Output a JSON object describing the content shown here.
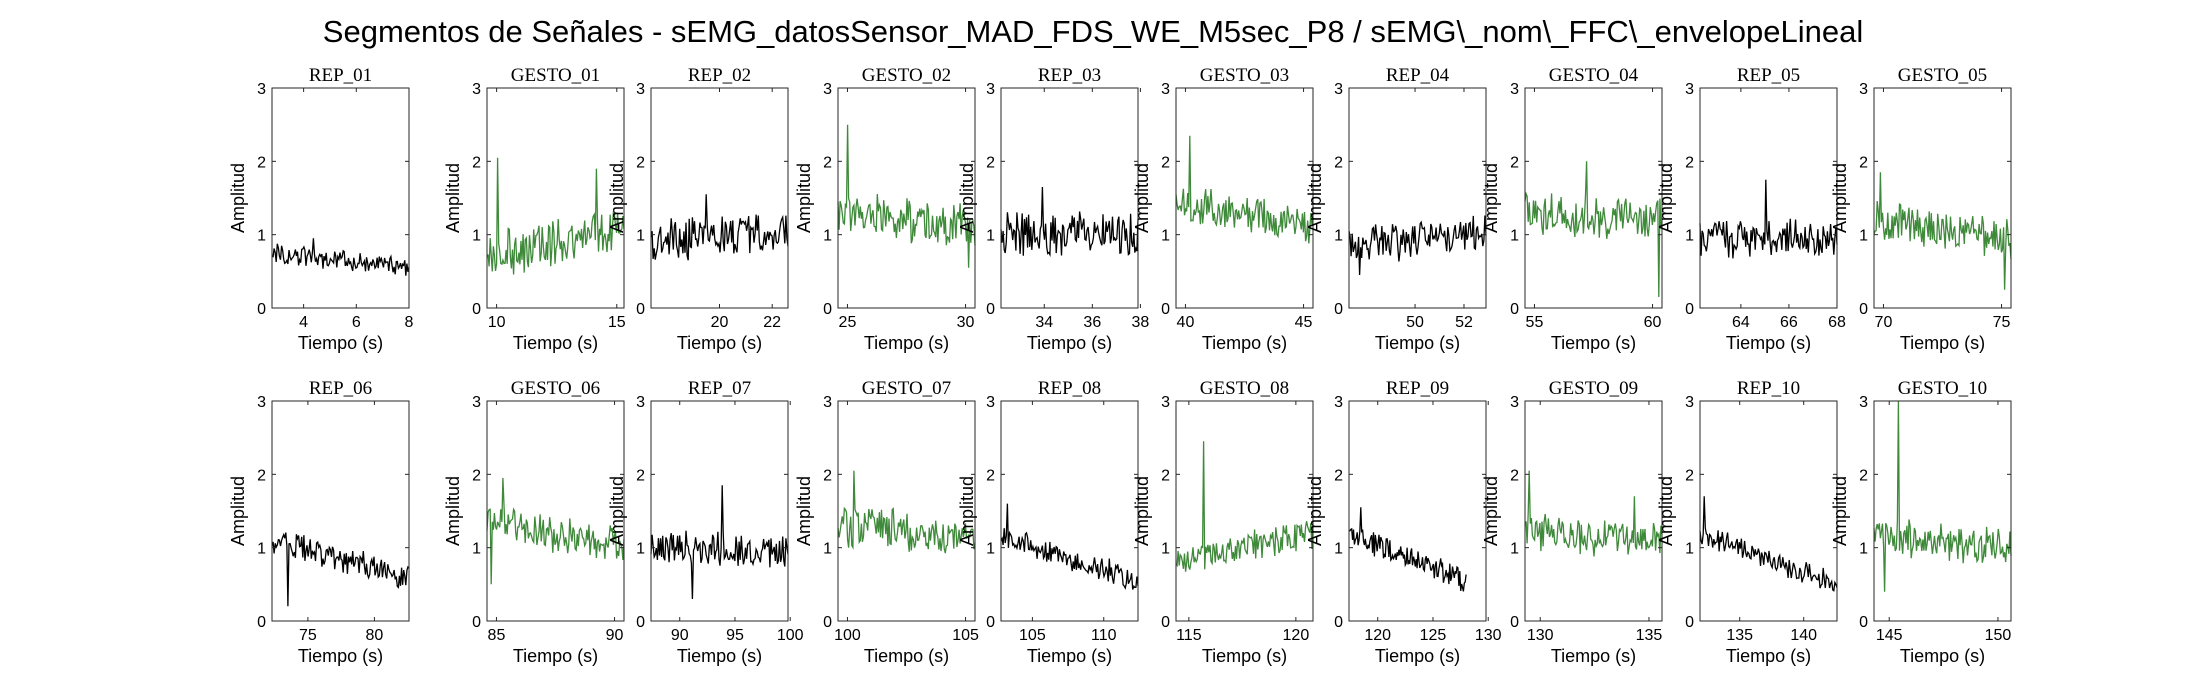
{
  "figure_title": "Segmentos de Señales - sEMG_datosSensor_MAD_FDS_WE_M5sec_P8 / sEMG\\_nom\\_FFC\\_envelopeLineal",
  "colors": {
    "rep": "#000000",
    "gesto": "#3f8a3a",
    "axes": "#262626"
  },
  "chart_data": [
    {
      "type": "line",
      "title": "REP_01",
      "xlabel": "Tiempo (s)",
      "ylabel": "Amplitud",
      "xlim": [
        2.8,
        8
      ],
      "ylim": [
        0,
        3
      ],
      "xticks": [
        4,
        6,
        8
      ],
      "yticks": [
        0,
        1,
        2,
        3
      ],
      "color": "#000000",
      "series": [
        {
          "x": [
            2.8,
            8
          ],
          "y_start": 0.75,
          "y_end": 0.55,
          "noise": 0.12,
          "peaks": [
            {
              "t": 0.3,
              "v": 0.95
            }
          ]
        }
      ]
    },
    {
      "type": "line",
      "title": "GESTO_01",
      "xlabel": "Tiempo (s)",
      "ylabel": "Amplitud",
      "xlim": [
        9.6,
        15.3
      ],
      "ylim": [
        0,
        3
      ],
      "xticks": [
        10,
        15
      ],
      "yticks": [
        0,
        1,
        2,
        3
      ],
      "color": "#3f8a3a",
      "series": [
        {
          "x": [
            9.6,
            15.3
          ],
          "y_start": 0.7,
          "y_end": 1.1,
          "noise": 0.28,
          "peaks": [
            {
              "t": 0.08,
              "v": 2.05
            },
            {
              "t": 0.8,
              "v": 1.9
            }
          ]
        }
      ]
    },
    {
      "type": "line",
      "title": "REP_02",
      "xlabel": "Tiempo (s)",
      "ylabel": "Amplitud",
      "xlim": [
        17.4,
        22.6
      ],
      "ylim": [
        0,
        3
      ],
      "xticks": [
        20,
        22
      ],
      "yticks": [
        0,
        1,
        2,
        3
      ],
      "color": "#000000",
      "series": [
        {
          "x": [
            17.4,
            22.6
          ],
          "y_start": 0.9,
          "y_end": 1.05,
          "noise": 0.25,
          "peaks": [
            {
              "t": 0.4,
              "v": 1.55
            }
          ]
        }
      ]
    },
    {
      "type": "line",
      "title": "GESTO_02",
      "xlabel": "Tiempo (s)",
      "ylabel": "Amplitud",
      "xlim": [
        24.6,
        30.4
      ],
      "ylim": [
        0,
        3
      ],
      "xticks": [
        25,
        30
      ],
      "yticks": [
        0,
        1,
        2,
        3
      ],
      "color": "#3f8a3a",
      "series": [
        {
          "x": [
            24.6,
            30.4
          ],
          "y_start": 1.3,
          "y_end": 1.1,
          "noise": 0.25,
          "peaks": [
            {
              "t": 0.07,
              "v": 2.5
            },
            {
              "t": 0.95,
              "v": 0.55
            }
          ]
        }
      ]
    },
    {
      "type": "line",
      "title": "REP_03",
      "xlabel": "Tiempo (s)",
      "ylabel": "Amplitud",
      "xlim": [
        32.2,
        37.9
      ],
      "ylim": [
        0,
        3
      ],
      "xticks": [
        34,
        36,
        38
      ],
      "yticks": [
        0,
        1,
        2,
        3
      ],
      "color": "#000000",
      "series": [
        {
          "x": [
            32.2,
            37.9
          ],
          "y_start": 1.0,
          "y_end": 1.0,
          "noise": 0.25,
          "peaks": [
            {
              "t": 0.3,
              "v": 1.65
            }
          ]
        }
      ]
    },
    {
      "type": "line",
      "title": "GESTO_03",
      "xlabel": "Tiempo (s)",
      "ylabel": "Amplitud",
      "xlim": [
        39.6,
        45.4
      ],
      "ylim": [
        0,
        3
      ],
      "xticks": [
        40,
        45
      ],
      "yticks": [
        0,
        1,
        2,
        3
      ],
      "color": "#3f8a3a",
      "series": [
        {
          "x": [
            39.6,
            45.4
          ],
          "y_start": 1.4,
          "y_end": 1.1,
          "noise": 0.25,
          "peaks": [
            {
              "t": 0.1,
              "v": 2.35
            }
          ]
        }
      ]
    },
    {
      "type": "line",
      "title": "REP_04",
      "xlabel": "Tiempo (s)",
      "ylabel": "Amplitud",
      "xlim": [
        47.3,
        52.9
      ],
      "ylim": [
        0,
        3
      ],
      "xticks": [
        50,
        52
      ],
      "yticks": [
        0,
        1,
        2,
        3
      ],
      "color": "#000000",
      "series": [
        {
          "x": [
            47.3,
            52.9
          ],
          "y_start": 0.85,
          "y_end": 1.0,
          "noise": 0.22,
          "peaks": [
            {
              "t": 0.08,
              "v": 0.45
            }
          ]
        }
      ]
    },
    {
      "type": "line",
      "title": "GESTO_04",
      "xlabel": "Tiempo (s)",
      "ylabel": "Amplitud",
      "xlim": [
        54.6,
        60.4
      ],
      "ylim": [
        0,
        3
      ],
      "xticks": [
        55,
        60
      ],
      "yticks": [
        0,
        1,
        2,
        3
      ],
      "color": "#3f8a3a",
      "series": [
        {
          "x": [
            54.6,
            60.4
          ],
          "y_start": 1.3,
          "y_end": 1.2,
          "noise": 0.25,
          "peaks": [
            {
              "t": 0.45,
              "v": 2.0
            },
            {
              "t": 0.98,
              "v": 0.15
            }
          ]
        }
      ]
    },
    {
      "type": "line",
      "title": "REP_05",
      "xlabel": "Tiempo (s)",
      "ylabel": "Amplitud",
      "xlim": [
        62.3,
        68
      ],
      "ylim": [
        0,
        3
      ],
      "xticks": [
        64,
        66,
        68
      ],
      "yticks": [
        0,
        1,
        2,
        3
      ],
      "color": "#000000",
      "series": [
        {
          "x": [
            62.3,
            68
          ],
          "y_start": 0.95,
          "y_end": 0.95,
          "noise": 0.22,
          "peaks": [
            {
              "t": 0.48,
              "v": 1.75
            }
          ]
        }
      ]
    },
    {
      "type": "line",
      "title": "GESTO_05",
      "xlabel": "Tiempo (s)",
      "ylabel": "Amplitud",
      "xlim": [
        69.6,
        75.4
      ],
      "ylim": [
        0,
        3
      ],
      "xticks": [
        70,
        75
      ],
      "yticks": [
        0,
        1,
        2,
        3
      ],
      "color": "#3f8a3a",
      "series": [
        {
          "x": [
            69.6,
            75.4
          ],
          "y_start": 1.2,
          "y_end": 0.95,
          "noise": 0.25,
          "peaks": [
            {
              "t": 0.05,
              "v": 1.85
            },
            {
              "t": 0.95,
              "v": 0.25
            }
          ]
        }
      ]
    },
    {
      "type": "line",
      "title": "REP_06",
      "xlabel": "Tiempo (s)",
      "ylabel": "Amplitud",
      "xlim": [
        72.3,
        82.6
      ],
      "ylim": [
        0,
        3
      ],
      "xticks": [
        75,
        80
      ],
      "yticks": [
        0,
        1,
        2,
        3
      ],
      "color": "#000000",
      "series": [
        {
          "x": [
            72.3,
            82.6
          ],
          "y_start": 1.1,
          "y_end": 0.6,
          "noise": 0.17,
          "peaks": [
            {
              "t": 0.12,
              "v": 0.2
            }
          ]
        }
      ]
    },
    {
      "type": "line",
      "title": "GESTO_06",
      "xlabel": "Tiempo (s)",
      "ylabel": "Amplitud",
      "xlim": [
        84.6,
        90.4
      ],
      "ylim": [
        0,
        3
      ],
      "xticks": [
        85,
        90
      ],
      "yticks": [
        0,
        1,
        2,
        3
      ],
      "color": "#3f8a3a",
      "series": [
        {
          "x": [
            84.6,
            90.4
          ],
          "y_start": 1.4,
          "y_end": 1.0,
          "noise": 0.22,
          "peaks": [
            {
              "t": 0.12,
              "v": 1.95
            },
            {
              "t": 0.03,
              "v": 0.5
            }
          ]
        }
      ]
    },
    {
      "type": "line",
      "title": "REP_07",
      "xlabel": "Tiempo (s)",
      "ylabel": "Amplitud",
      "xlim": [
        87.4,
        99.8
      ],
      "ylim": [
        0,
        3
      ],
      "xticks": [
        90,
        95,
        100
      ],
      "yticks": [
        0,
        1,
        2,
        3
      ],
      "color": "#000000",
      "series": [
        {
          "x": [
            87.4,
            99.8
          ],
          "y_start": 1.0,
          "y_end": 0.95,
          "noise": 0.2,
          "peaks": [
            {
              "t": 0.52,
              "v": 1.85
            },
            {
              "t": 0.3,
              "v": 0.3
            }
          ]
        }
      ]
    },
    {
      "type": "line",
      "title": "GESTO_07",
      "xlabel": "Tiempo (s)",
      "ylabel": "Amplitud",
      "xlim": [
        99.6,
        105.4
      ],
      "ylim": [
        0,
        3
      ],
      "xticks": [
        100,
        105
      ],
      "yticks": [
        0,
        1,
        2,
        3
      ],
      "color": "#3f8a3a",
      "series": [
        {
          "x": [
            99.6,
            105.4
          ],
          "y_start": 1.3,
          "y_end": 1.15,
          "noise": 0.25,
          "peaks": [
            {
              "t": 0.12,
              "v": 2.05
            }
          ]
        }
      ]
    },
    {
      "type": "line",
      "title": "REP_08",
      "xlabel": "Tiempo (s)",
      "ylabel": "Amplitud",
      "xlim": [
        102.8,
        112.4
      ],
      "ylim": [
        0,
        3
      ],
      "xticks": [
        105,
        110
      ],
      "yticks": [
        0,
        1,
        2,
        3
      ],
      "color": "#000000",
      "series": [
        {
          "x": [
            102.8,
            112.4
          ],
          "y_start": 1.15,
          "y_end": 0.55,
          "noise": 0.14,
          "peaks": [
            {
              "t": 0.05,
              "v": 1.6
            }
          ]
        }
      ]
    },
    {
      "type": "line",
      "title": "GESTO_08",
      "xlabel": "Tiempo (s)",
      "ylabel": "Amplitud",
      "xlim": [
        114.4,
        120.8
      ],
      "ylim": [
        0,
        3
      ],
      "xticks": [
        115,
        120
      ],
      "yticks": [
        0,
        1,
        2,
        3
      ],
      "color": "#3f8a3a",
      "series": [
        {
          "x": [
            114.4,
            120.8
          ],
          "y_start": 0.8,
          "y_end": 1.2,
          "noise": 0.18,
          "peaks": [
            {
              "t": 0.2,
              "v": 2.45
            }
          ]
        }
      ]
    },
    {
      "type": "line",
      "title": "REP_09",
      "xlabel": "Tiempo (s)",
      "ylabel": "Amplitud",
      "xlim": [
        117.4,
        129.8
      ],
      "ylim": [
        0,
        3
      ],
      "xticks": [
        120,
        125,
        130
      ],
      "yticks": [
        0,
        1,
        2,
        3
      ],
      "color": "#000000",
      "series": [
        {
          "x": [
            117.4,
            128
          ],
          "y_start": 1.2,
          "y_end": 0.55,
          "noise": 0.15,
          "peaks": [
            {
              "t": 0.1,
              "v": 1.55
            }
          ]
        }
      ]
    },
    {
      "type": "line",
      "title": "GESTO_09",
      "xlabel": "Tiempo (s)",
      "ylabel": "Amplitud",
      "xlim": [
        129.3,
        135.6
      ],
      "ylim": [
        0,
        3
      ],
      "xticks": [
        130,
        135
      ],
      "yticks": [
        0,
        1,
        2,
        3
      ],
      "color": "#3f8a3a",
      "series": [
        {
          "x": [
            129.3,
            135.6
          ],
          "y_start": 1.2,
          "y_end": 1.1,
          "noise": 0.22,
          "peaks": [
            {
              "t": 0.03,
              "v": 2.05
            },
            {
              "t": 0.8,
              "v": 1.7
            }
          ]
        }
      ]
    },
    {
      "type": "line",
      "title": "REP_10",
      "xlabel": "Tiempo (s)",
      "ylabel": "Amplitud",
      "xlim": [
        131.9,
        142.6
      ],
      "ylim": [
        0,
        3
      ],
      "xticks": [
        135,
        140
      ],
      "yticks": [
        0,
        1,
        2,
        3
      ],
      "color": "#000000",
      "series": [
        {
          "x": [
            131.9,
            142.6
          ],
          "y_start": 1.2,
          "y_end": 0.5,
          "noise": 0.13,
          "peaks": [
            {
              "t": 0.03,
              "v": 1.7
            }
          ]
        }
      ]
    },
    {
      "type": "line",
      "title": "GESTO_10",
      "xlabel": "Tiempo (s)",
      "ylabel": "Amplitud",
      "xlim": [
        144.3,
        150.6
      ],
      "ylim": [
        0,
        3
      ],
      "xticks": [
        145,
        150
      ],
      "yticks": [
        0,
        1,
        2,
        3
      ],
      "color": "#3f8a3a",
      "series": [
        {
          "x": [
            144.3,
            150.6
          ],
          "y_start": 1.15,
          "y_end": 1.0,
          "noise": 0.22,
          "peaks": [
            {
              "t": 0.18,
              "v": 3.0
            },
            {
              "t": 0.08,
              "v": 0.4
            }
          ]
        }
      ]
    }
  ]
}
